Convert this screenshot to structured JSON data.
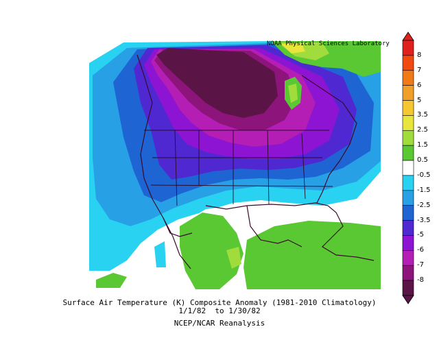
{
  "credit": "NOAA Physical Sciences Laboratory",
  "caption": {
    "line1": "Surface Air Temperature (K) Composite Anomaly (1981-2010 Climatology)",
    "line2": "1/1/82  to 1/30/82",
    "line3": "NCEP/NCAR Reanalysis"
  },
  "colorbar": {
    "labels": [
      "8",
      "7",
      "6",
      "5",
      "3.5",
      "2.5",
      "1.5",
      "0.5",
      "-0.5",
      "-1.5",
      "-2.5",
      "-3.5",
      "-5",
      "-6",
      "-7",
      "-8"
    ],
    "colors": [
      "#e0201c",
      "#f04a10",
      "#f07a18",
      "#f0a028",
      "#f5c832",
      "#e8e63c",
      "#a0dc3c",
      "#5ac832",
      "#ffffff",
      "#28d2f0",
      "#28a0e6",
      "#1e64d2",
      "#5028d2",
      "#8c14d2",
      "#b41eb4",
      "#8c147a",
      "#5a1446"
    ]
  },
  "colors": {
    "deep_purple": "#5a1446",
    "purple": "#8c147a",
    "magenta": "#b41eb4",
    "violet": "#8c14d2",
    "indigo": "#5028d2",
    "blue": "#1e64d2",
    "mid_blue": "#28a0e6",
    "cyan": "#28d2f0",
    "green": "#5ac832",
    "lime": "#a0dc3c",
    "yellow": "#e8e63c"
  }
}
